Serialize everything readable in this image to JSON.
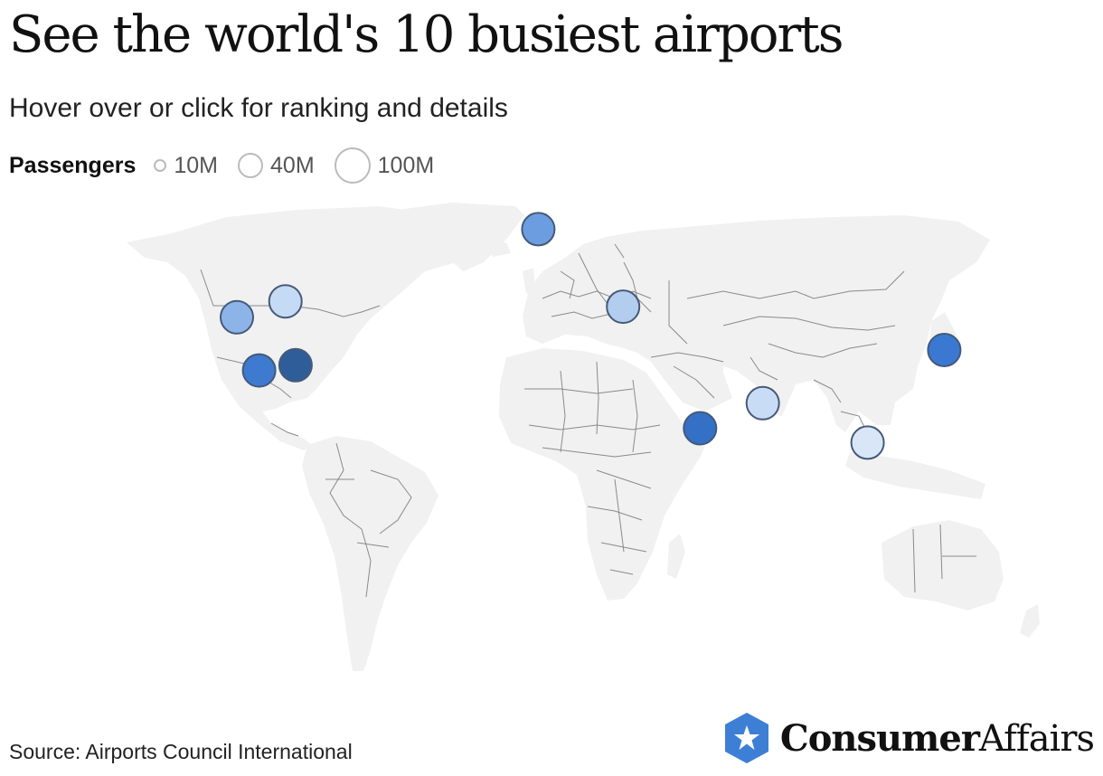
{
  "header": {
    "title": "See the world's 10 busiest airports",
    "subtitle": "Hover over or click for ranking and details"
  },
  "legend": {
    "title": "Passengers",
    "items": [
      {
        "label": "10M",
        "value": 10
      },
      {
        "label": "40M",
        "value": 40
      },
      {
        "label": "100M",
        "value": 100
      }
    ]
  },
  "airports": [
    {
      "id": "atlanta",
      "lon": -84.4,
      "lat": 33.6,
      "color": "#2f5d99"
    },
    {
      "id": "dallas",
      "lon": -97.0,
      "lat": 32.9,
      "color": "#3d7ad0"
    },
    {
      "id": "denver",
      "lon": -104.7,
      "lat": 39.9,
      "color": "#8db4e8"
    },
    {
      "id": "chicago",
      "lon": -87.9,
      "lat": 42.0,
      "color": "#c5daf5"
    },
    {
      "id": "dubai",
      "lon": 55.4,
      "lat": 25.3,
      "color": "#3470c6"
    },
    {
      "id": "london",
      "lon": -0.5,
      "lat": 51.5,
      "color": "#6b9de0"
    },
    {
      "id": "istanbul",
      "lon": 28.8,
      "lat": 41.3,
      "color": "#b3cdef"
    },
    {
      "id": "delhi",
      "lon": 77.1,
      "lat": 28.6,
      "color": "#c8dcf5"
    },
    {
      "id": "guangzhou",
      "lon": 113.3,
      "lat": 23.4,
      "color": "#d8e6f8"
    },
    {
      "id": "tokyo",
      "lon": 139.8,
      "lat": 35.6,
      "color": "#3a78d2"
    }
  ],
  "footer": {
    "source": "Source: Airports Council International",
    "logo_bold": "Consumer",
    "logo_regular": "Affairs",
    "brand_color": "#3e7fd6"
  }
}
